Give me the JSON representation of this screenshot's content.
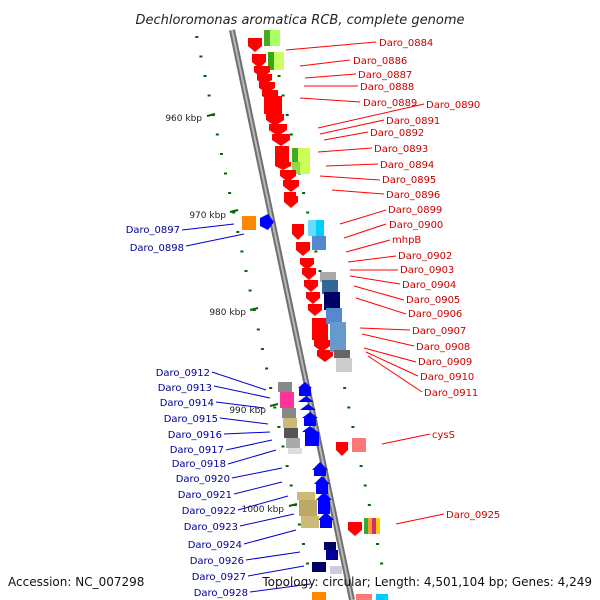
{
  "title": "Dechloromonas aromatica RCB, complete genome",
  "footer": {
    "accession": "Accession: NC_007298",
    "topology": "Topology: circular; Length: 4,501,104 bp; Genes: 4,249"
  },
  "colors": {
    "forward_gene": "#ff0000",
    "reverse_gene": "#0000ff",
    "forward_label": "#cc0000",
    "reverse_label": "#000099",
    "tick": "#006600",
    "backbone": "#888888"
  },
  "scale_ticks": [
    "960 kbp",
    "970 kbp",
    "980 kbp",
    "990 kbp",
    "1000 kbp"
  ],
  "forward_genes": [
    "Daro_0884",
    "Daro_0886",
    "Daro_0887",
    "Daro_0888",
    "Daro_0889",
    "Daro_0890",
    "Daro_0891",
    "Daro_0892",
    "Daro_0893",
    "Daro_0894",
    "Daro_0895",
    "Daro_0896",
    "Daro_0899",
    "Daro_0900",
    "mhpB",
    "Daro_0902",
    "Daro_0903",
    "Daro_0904",
    "Daro_0905",
    "Daro_0906",
    "Daro_0907",
    "Daro_0908",
    "Daro_0909",
    "Daro_0910",
    "Daro_0911",
    "cysS",
    "Daro_0925"
  ],
  "reverse_genes": [
    "Daro_0897",
    "Daro_0898",
    "Daro_0912",
    "Daro_0913",
    "Daro_0914",
    "Daro_0915",
    "Daro_0916",
    "Daro_0917",
    "Daro_0918",
    "Daro_0920",
    "Daro_0921",
    "Daro_0922",
    "Daro_0923",
    "Daro_0924",
    "Daro_0926",
    "Daro_0927",
    "Daro_0928"
  ]
}
